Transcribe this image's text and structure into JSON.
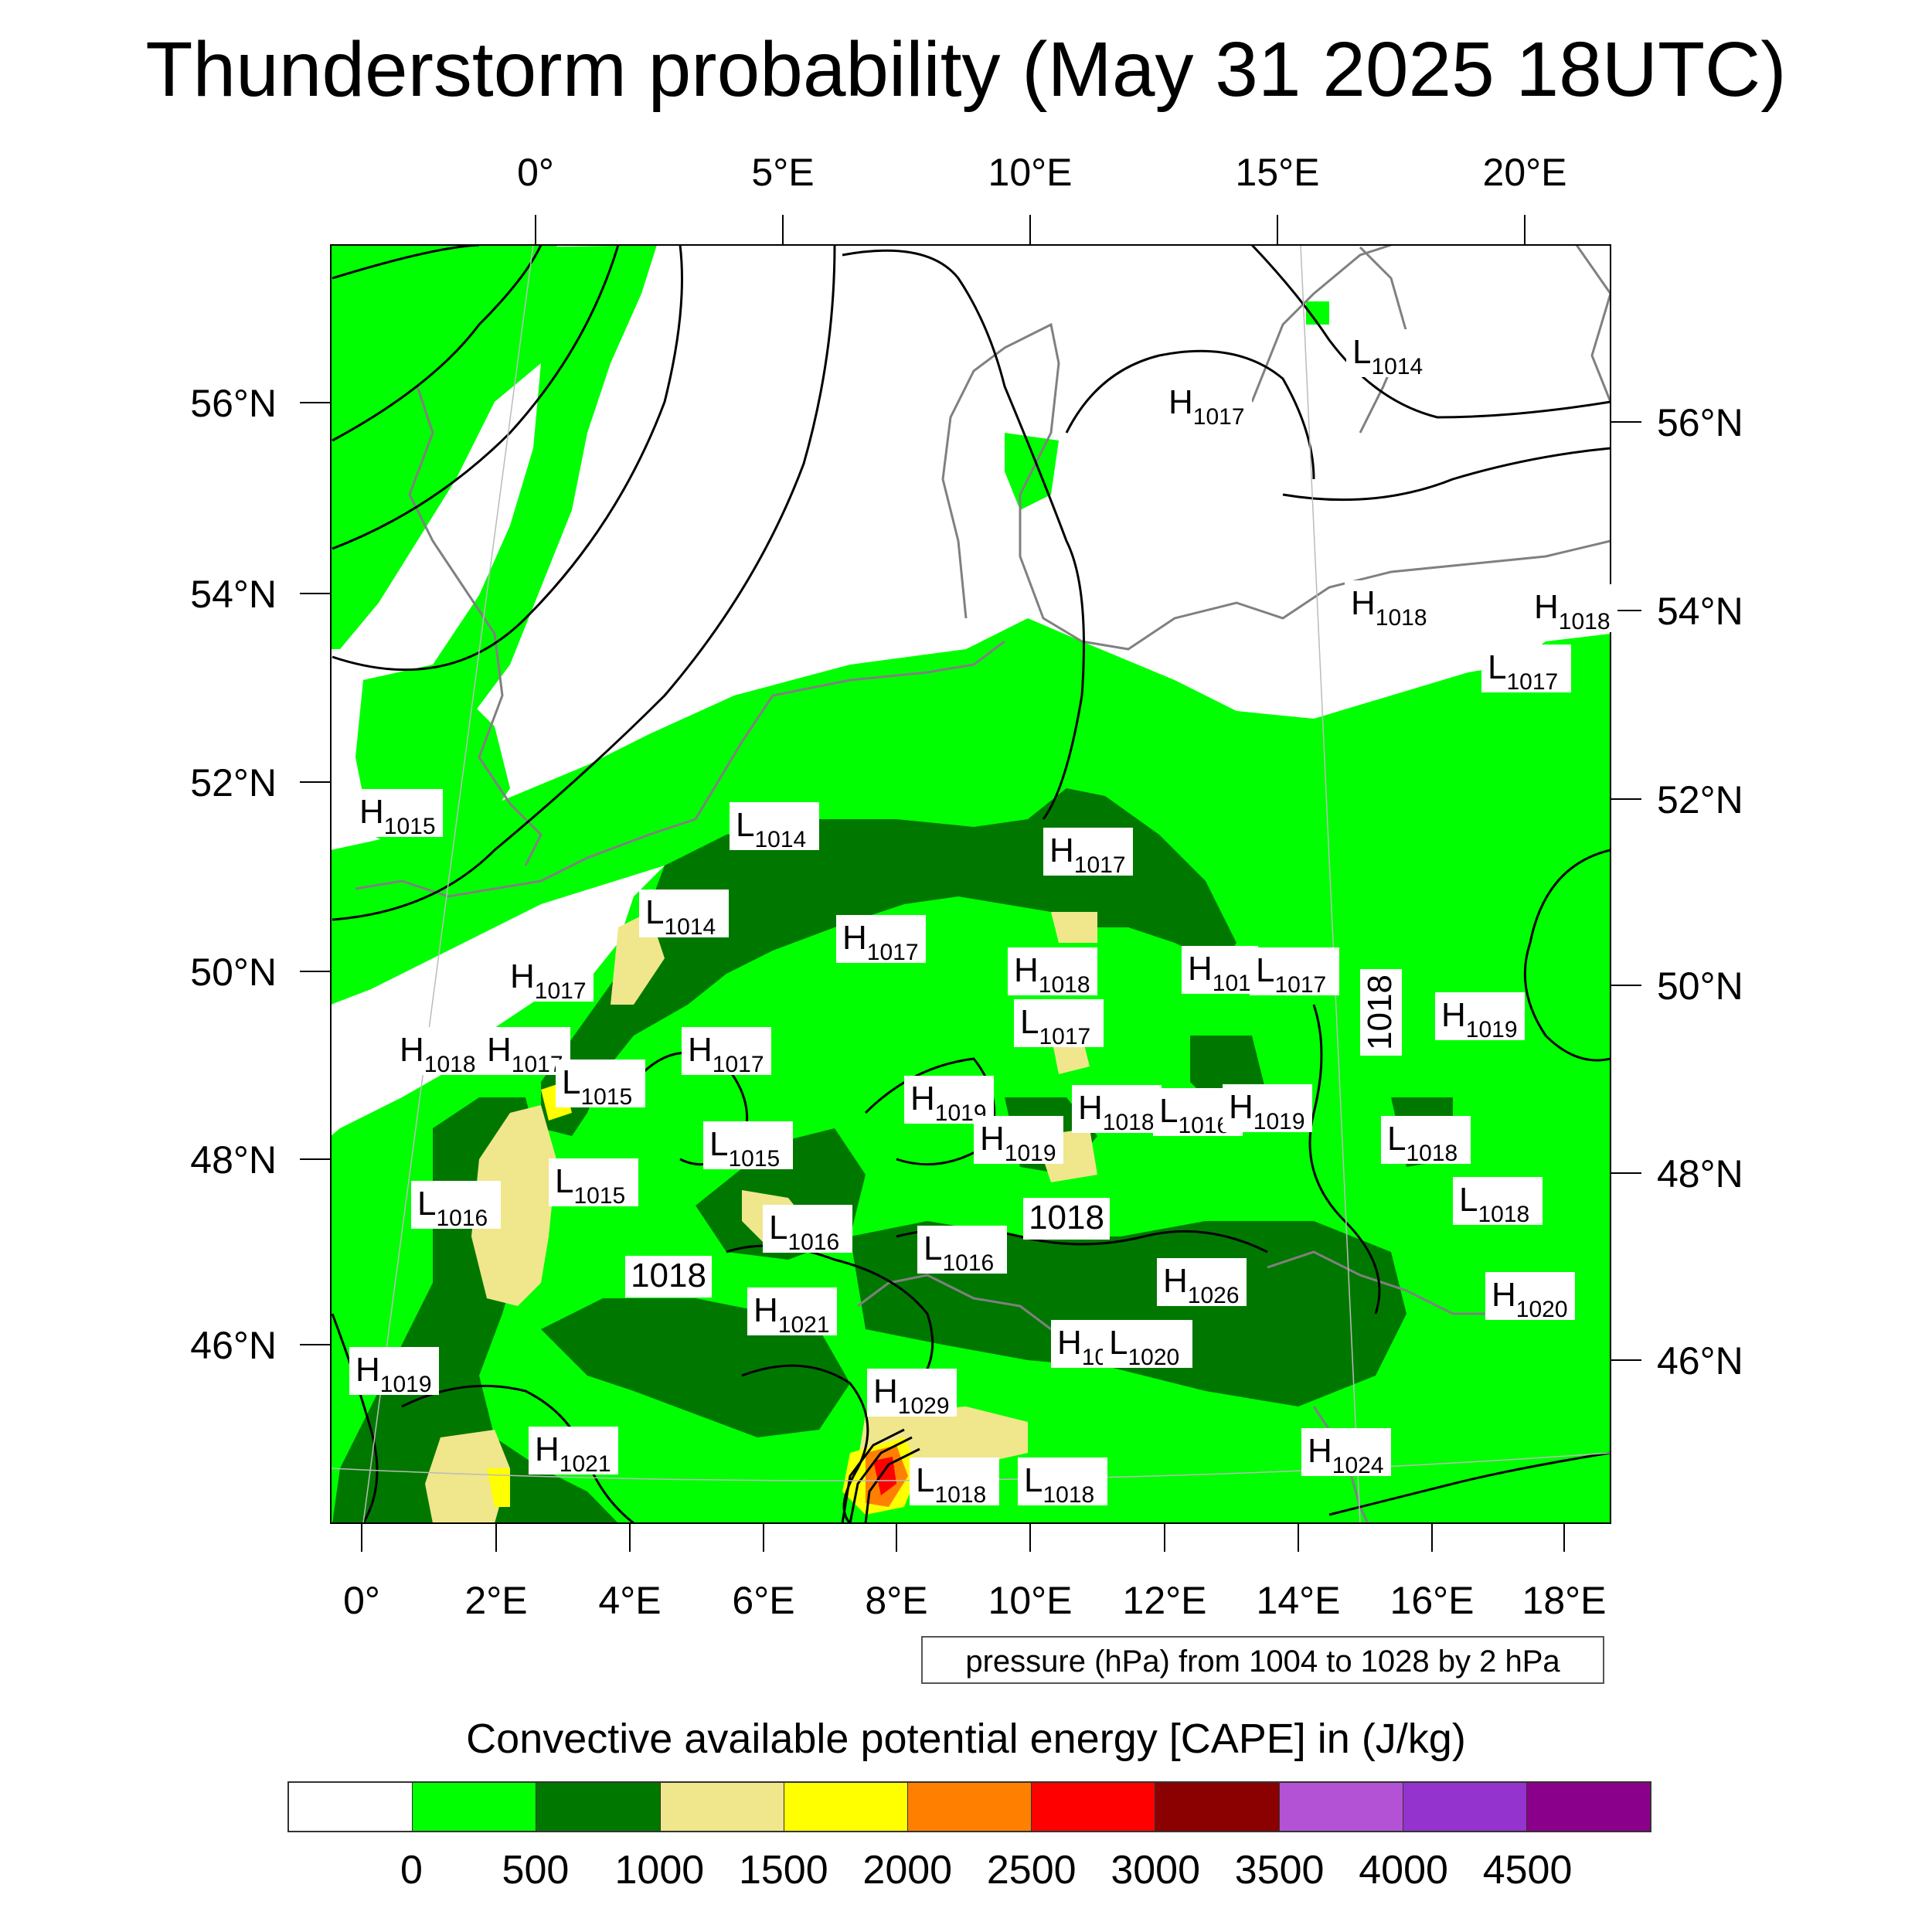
{
  "title": "Thunderstorm probability (May 31 2025 18UTC)",
  "map": {
    "top_lon_labels": [
      "0°",
      "5°E",
      "10°E",
      "15°E",
      "20°E"
    ],
    "bottom_lon_labels": [
      "0°",
      "2°E",
      "4°E",
      "6°E",
      "8°E",
      "10°E",
      "12°E",
      "14°E",
      "16°E",
      "18°E"
    ],
    "left_lat_labels": [
      "56°N",
      "54°N",
      "52°N",
      "50°N",
      "48°N",
      "46°N"
    ],
    "right_lat_labels": [
      "56°N",
      "54°N",
      "52°N",
      "50°N",
      "48°N",
      "46°N"
    ],
    "pressure_centers": [
      {
        "type": "L",
        "value": "1014"
      },
      {
        "type": "H",
        "value": "1017"
      },
      {
        "type": "H",
        "value": "1018"
      },
      {
        "type": "H",
        "value": "1018"
      },
      {
        "type": "L",
        "value": "1017"
      },
      {
        "type": "H",
        "value": "1015"
      },
      {
        "type": "L",
        "value": "1014"
      },
      {
        "type": "H",
        "value": "1017"
      },
      {
        "type": "L",
        "value": "1014"
      },
      {
        "type": "H",
        "value": "1017"
      },
      {
        "type": "H",
        "value": "1017"
      },
      {
        "type": "H",
        "value": "1018"
      },
      {
        "type": "H",
        "value": "101"
      },
      {
        "type": "L",
        "value": "1017"
      },
      {
        "type": "L",
        "value": "1017"
      },
      {
        "type": "H",
        "value": "1019"
      },
      {
        "type": "H",
        "value": "1018"
      },
      {
        "type": "H",
        "value": "1017"
      },
      {
        "type": "L",
        "value": "1015"
      },
      {
        "type": "H",
        "value": "1017"
      },
      {
        "type": "H",
        "value": "1019"
      },
      {
        "type": "H",
        "value": "1018"
      },
      {
        "type": "L",
        "value": "1016"
      },
      {
        "type": "H",
        "value": "1019"
      },
      {
        "type": "H",
        "value": "1019"
      },
      {
        "type": "L",
        "value": "1015"
      },
      {
        "type": "L",
        "value": "1018"
      },
      {
        "type": "L",
        "value": "1016"
      },
      {
        "type": "L",
        "value": "1015"
      },
      {
        "type": "L",
        "value": "1018"
      },
      {
        "type": "L",
        "value": "1016"
      },
      {
        "type": "L",
        "value": "1016"
      },
      {
        "type": "H",
        "value": "1026"
      },
      {
        "type": "H",
        "value": "1020"
      },
      {
        "type": "H",
        "value": "1021"
      },
      {
        "type": "H",
        "value": "10"
      },
      {
        "type": "L",
        "value": "1020"
      },
      {
        "type": "H",
        "value": "1019"
      },
      {
        "type": "H",
        "value": "1029"
      },
      {
        "type": "H",
        "value": "1021"
      },
      {
        "type": "H",
        "value": "1024"
      },
      {
        "type": "L",
        "value": "1018"
      },
      {
        "type": "L",
        "value": "1018"
      }
    ],
    "isobar_labels": [
      "1018",
      "1018",
      "1018"
    ]
  },
  "pressure_note": "pressure (hPa) from 1004 to 1028 by 2 hPa",
  "colorbar": {
    "title": "Convective available potential energy [CAPE] in (J/kg)",
    "colors": [
      "#ffffff",
      "#00ff00",
      "#007800",
      "#f0e68c",
      "#ffff00",
      "#ff8000",
      "#ff0000",
      "#8b0000",
      "#b452d6",
      "#9433cd",
      "#8b008b"
    ],
    "labels": [
      "0",
      "500",
      "1000",
      "1500",
      "2000",
      "2500",
      "3000",
      "3500",
      "4000",
      "4500"
    ]
  }
}
